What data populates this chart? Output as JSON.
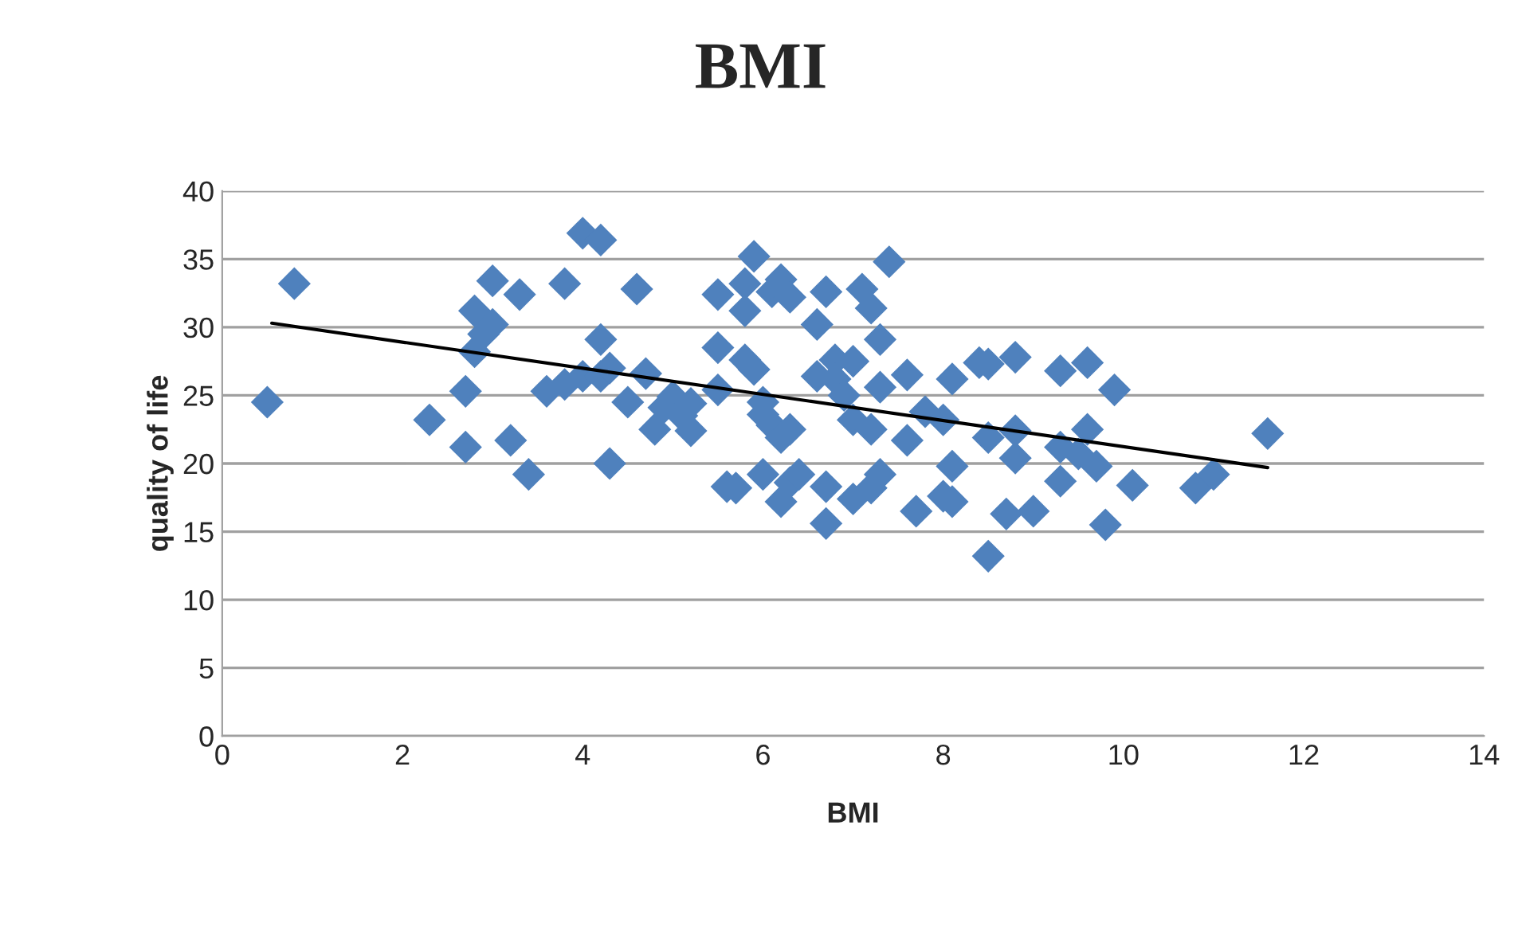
{
  "chart_data": {
    "type": "scatter",
    "title": "BMI",
    "xlabel": "BMI",
    "ylabel": "quality of life",
    "xlim": [
      0,
      14
    ],
    "xticks": [
      0,
      2,
      4,
      6,
      8,
      10,
      12,
      14
    ],
    "ylim": [
      0,
      40
    ],
    "yticks": [
      0,
      5,
      10,
      15,
      20,
      25,
      30,
      35,
      40
    ],
    "grid": "y",
    "legend": false,
    "marker": "diamond",
    "series": [
      {
        "color": "#4f81bd",
        "x": [
          0.5,
          0.8,
          2.3,
          2.7,
          2.7,
          2.8,
          2.8,
          2.9,
          3.0,
          3.0,
          3.2,
          3.3,
          3.4,
          3.6,
          3.8,
          3.8,
          4.0,
          4.0,
          4.2,
          4.2,
          4.2,
          4.3,
          4.3,
          4.6,
          4.5,
          4.7,
          4.8,
          4.9,
          5.0,
          5.1,
          5.2,
          5.2,
          5.5,
          5.5,
          5.5,
          5.6,
          5.8,
          5.7,
          5.8,
          5.9,
          5.8,
          5.9,
          6.0,
          6.0,
          6.0,
          6.1,
          6.1,
          6.2,
          6.2,
          6.2,
          6.3,
          6.3,
          6.3,
          6.4,
          6.6,
          6.7,
          6.6,
          6.7,
          6.7,
          6.8,
          6.8,
          6.9,
          7.0,
          7.1,
          7.0,
          7.0,
          7.2,
          7.2,
          7.2,
          7.3,
          7.3,
          7.3,
          7.4,
          7.6,
          7.6,
          7.7,
          7.8,
          8.0,
          8.0,
          8.1,
          8.1,
          8.1,
          8.4,
          8.5,
          8.5,
          8.5,
          8.7,
          8.8,
          8.8,
          8.8,
          9.0,
          9.3,
          9.3,
          9.3,
          9.5,
          9.6,
          9.6,
          9.7,
          9.8,
          9.9,
          10.1,
          10.8,
          11.0,
          11.6
        ],
        "values": [
          24.5,
          33.2,
          23.2,
          25.3,
          21.2,
          31.2,
          28.2,
          29.5,
          33.4,
          30.2,
          21.7,
          32.4,
          19.2,
          25.3,
          33.2,
          25.8,
          26.4,
          36.9,
          26.4,
          36.4,
          29.1,
          27.0,
          20.0,
          32.8,
          24.5,
          26.6,
          22.5,
          24.1,
          24.9,
          23.5,
          24.4,
          22.4,
          32.4,
          28.5,
          25.4,
          18.3,
          33.2,
          18.2,
          31.2,
          35.2,
          27.6,
          26.9,
          24.5,
          19.2,
          23.6,
          22.8,
          32.6,
          33.5,
          17.2,
          21.9,
          32.2,
          18.6,
          22.5,
          19.2,
          30.2,
          32.6,
          26.4,
          15.6,
          18.3,
          27.6,
          26.2,
          25.0,
          23.2,
          32.8,
          27.5,
          17.4,
          31.4,
          22.5,
          18.2,
          29.1,
          19.2,
          25.6,
          34.8,
          26.5,
          21.7,
          16.5,
          23.8,
          17.6,
          23.2,
          26.2,
          19.8,
          17.2,
          27.4,
          21.9,
          13.2,
          27.3,
          16.3,
          27.8,
          20.4,
          22.4,
          16.5,
          21.2,
          26.8,
          18.7,
          20.7,
          27.4,
          22.5,
          19.8,
          15.5,
          25.4,
          18.4,
          18.2,
          19.2,
          22.2
        ]
      },
      {
        "type": "line",
        "color": "#000000",
        "marker": "none",
        "line_style": "solid",
        "x": [
          0.55,
          11.6
        ],
        "values": [
          30.3,
          19.7
        ]
      }
    ]
  }
}
